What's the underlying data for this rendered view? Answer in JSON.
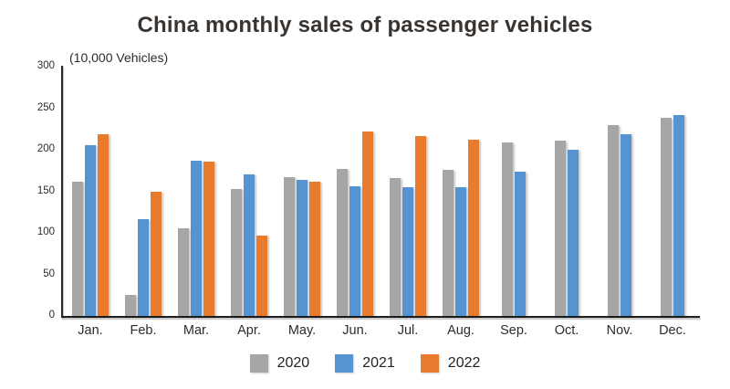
{
  "title": "China monthly sales of passenger vehicles",
  "chart_data": {
    "type": "bar",
    "title": "China monthly sales of passenger vehicles",
    "unit_label": "(10,000 Vehicles)",
    "ylabel": "(10,000 Vehicles)",
    "xlabel": "",
    "categories": [
      "Jan.",
      "Feb.",
      "Mar.",
      "Apr.",
      "May.",
      "Jun.",
      "Jul.",
      "Aug.",
      "Sep.",
      "Oct.",
      "Nov.",
      "Dec."
    ],
    "series": [
      {
        "name": "2020",
        "color": "#A6A6A6",
        "values": [
          161,
          25,
          106,
          153,
          167,
          177,
          166,
          176,
          209,
          211,
          230,
          238
        ]
      },
      {
        "name": "2021",
        "color": "#5594D0",
        "values": [
          205,
          116,
          187,
          170,
          164,
          156,
          155,
          155,
          174,
          200,
          219,
          242
        ]
      },
      {
        "name": "2022",
        "color": "#E87B2E",
        "values": [
          219,
          149,
          186,
          97,
          161,
          222,
          217,
          212,
          null,
          null,
          null,
          null
        ]
      }
    ],
    "ylim": [
      0,
      300
    ],
    "yticks": [
      0,
      50,
      100,
      150,
      200,
      250,
      300
    ],
    "grid": false,
    "legend_position": "bottom"
  }
}
